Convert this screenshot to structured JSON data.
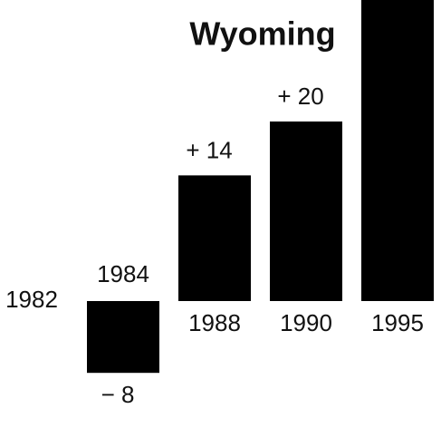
{
  "chart_data": {
    "type": "bar",
    "title": "Wyoming",
    "categories": [
      "1982",
      "1984",
      "1988",
      "1990",
      "1995"
    ],
    "values": [
      0,
      -8,
      14,
      20,
      34
    ],
    "value_labels": [
      null,
      "− 8",
      "+ 14",
      "+ 20",
      null
    ],
    "color": "#000000"
  }
}
